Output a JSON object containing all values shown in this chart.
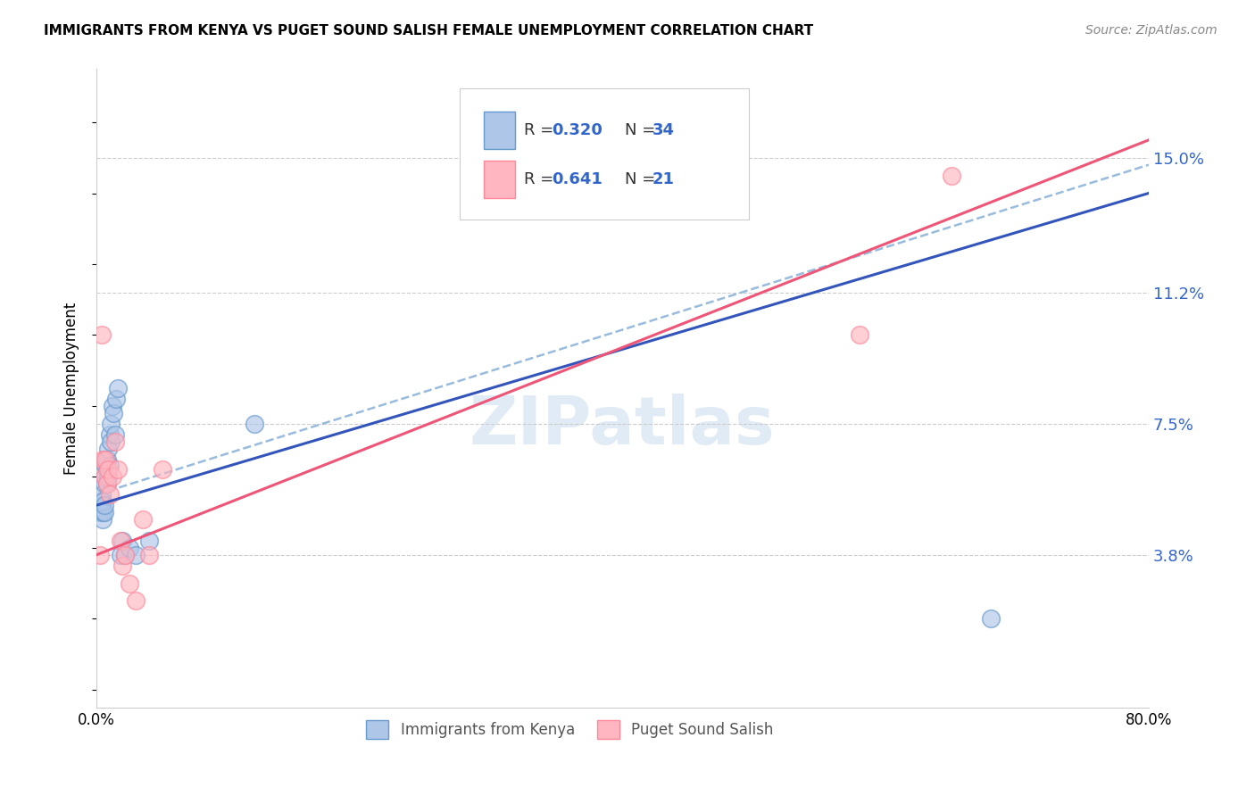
{
  "title": "IMMIGRANTS FROM KENYA VS PUGET SOUND SALISH FEMALE UNEMPLOYMENT CORRELATION CHART",
  "source": "Source: ZipAtlas.com",
  "ylabel": "Female Unemployment",
  "ytick_labels": [
    "15.0%",
    "11.2%",
    "7.5%",
    "3.8%"
  ],
  "ytick_values": [
    0.15,
    0.112,
    0.075,
    0.038
  ],
  "xlim": [
    0.0,
    0.8
  ],
  "ylim": [
    -0.005,
    0.175
  ],
  "blue_color": "#6699CC",
  "pink_color": "#FF8899",
  "blue_fill": "#AEC6E8",
  "pink_fill": "#FFB6C1",
  "trend_blue": "#3355BB",
  "trend_pink": "#EE5577",
  "trend_dashed_color": "#99BBDD",
  "watermark": "ZIPatlas",
  "legend_label1": "Immigrants from Kenya",
  "legend_label2": "Puget Sound Salish",
  "kenya_x": [
    0.003,
    0.004,
    0.004,
    0.005,
    0.005,
    0.005,
    0.006,
    0.006,
    0.006,
    0.007,
    0.007,
    0.007,
    0.008,
    0.008,
    0.008,
    0.009,
    0.009,
    0.01,
    0.01,
    0.011,
    0.011,
    0.012,
    0.013,
    0.014,
    0.015,
    0.016,
    0.018,
    0.02,
    0.022,
    0.025,
    0.03,
    0.04,
    0.12,
    0.68
  ],
  "kenya_y": [
    0.05,
    0.052,
    0.055,
    0.048,
    0.05,
    0.053,
    0.05,
    0.052,
    0.058,
    0.06,
    0.063,
    0.065,
    0.058,
    0.062,
    0.065,
    0.06,
    0.068,
    0.063,
    0.072,
    0.07,
    0.075,
    0.08,
    0.078,
    0.072,
    0.082,
    0.085,
    0.038,
    0.042,
    0.038,
    0.04,
    0.038,
    0.042,
    0.075,
    0.02
  ],
  "salish_x": [
    0.003,
    0.004,
    0.005,
    0.006,
    0.007,
    0.008,
    0.009,
    0.01,
    0.012,
    0.014,
    0.016,
    0.018,
    0.02,
    0.022,
    0.025,
    0.03,
    0.035,
    0.04,
    0.05,
    0.58,
    0.65
  ],
  "salish_y": [
    0.038,
    0.1,
    0.065,
    0.06,
    0.065,
    0.058,
    0.062,
    0.055,
    0.06,
    0.07,
    0.062,
    0.042,
    0.035,
    0.038,
    0.03,
    0.025,
    0.048,
    0.038,
    0.062,
    0.1,
    0.145
  ],
  "blue_trend_x0": 0.0,
  "blue_trend_y0": 0.052,
  "blue_trend_x1": 0.8,
  "blue_trend_y1": 0.14,
  "pink_trend_x0": 0.0,
  "pink_trend_y0": 0.038,
  "pink_trend_x1": 0.8,
  "pink_trend_y1": 0.155,
  "dashed_trend_x0": 0.0,
  "dashed_trend_y0": 0.055,
  "dashed_trend_x1": 0.8,
  "dashed_trend_y1": 0.148
}
